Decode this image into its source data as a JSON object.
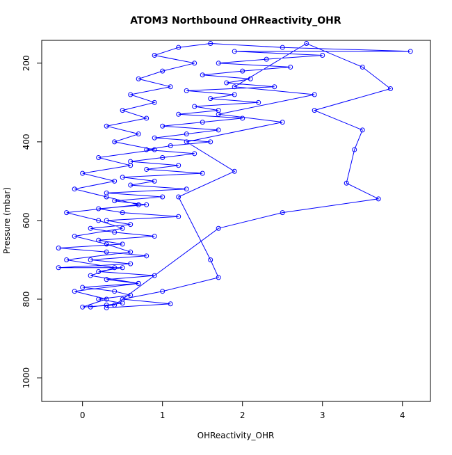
{
  "chart_data": {
    "type": "line",
    "title": "ATOM3 Northbound OHReactivity_OHR",
    "xlabel": "OHReactivity_OHR",
    "ylabel": "Pressure (mbar)",
    "xlim": [
      -0.51,
      4.35
    ],
    "xticks": [
      0,
      1,
      2,
      3,
      4
    ],
    "ylim": [
      1060,
      142
    ],
    "yticks": [
      200,
      400,
      600,
      800,
      1000
    ],
    "x": [
      0.1,
      0.3,
      0.5,
      0.2,
      0.6,
      0.4,
      0.0,
      0.7,
      0.3,
      0.9,
      0.2,
      0.5,
      -0.3,
      0.6,
      0.1,
      0.8,
      0.3,
      -0.3,
      0.5,
      0.2,
      0.9,
      0.4,
      0.1,
      0.6,
      0.3,
      1.2,
      0.5,
      0.2,
      0.8,
      0.4,
      1.0,
      0.3,
      1.3,
      0.6,
      0.9,
      0.5,
      1.5,
      0.8,
      1.2,
      0.6,
      1.0,
      1.4,
      0.8,
      1.1,
      1.6,
      0.9,
      1.3,
      1.7,
      1.0,
      1.5,
      2.0,
      1.2,
      1.7,
      1.4,
      2.2,
      1.6,
      1.9,
      1.3,
      2.4,
      1.8,
      2.1,
      1.5,
      2.0,
      2.6,
      1.7,
      2.3,
      3.0,
      1.9,
      4.1,
      2.5,
      1.6,
      1.2,
      0.9,
      1.4,
      1.0,
      0.7,
      1.1,
      0.6,
      0.9,
      0.5,
      0.8,
      0.3,
      0.7,
      0.4,
      0.9,
      0.2,
      0.6,
      0.0,
      0.4,
      -0.1,
      0.3,
      0.7,
      -0.2,
      0.2,
      0.5,
      -0.1,
      0.3,
      0.6,
      -0.2,
      0.4,
      0.1,
      0.7,
      -0.1,
      0.3,
      0.0,
      0.4,
      1.7,
      2.5,
      3.7,
      3.3,
      3.4,
      3.5,
      2.9,
      3.85,
      3.5,
      2.8,
      1.9,
      2.9,
      1.7,
      2.5,
      1.3,
      1.9,
      1.2,
      1.6,
      1.7,
      1.0,
      0.5,
      1.1,
      0.3
    ],
    "series": [
      {
        "color": "#0000ff",
        "values": [
          820,
          815,
          810,
          800,
          790,
          780,
          770,
          760,
          750,
          740,
          730,
          720,
          720,
          710,
          700,
          690,
          680,
          670,
          660,
          650,
          640,
          630,
          620,
          610,
          600,
          590,
          580,
          570,
          560,
          550,
          540,
          530,
          520,
          510,
          500,
          490,
          480,
          470,
          460,
          450,
          440,
          430,
          420,
          410,
          400,
          390,
          380,
          370,
          360,
          350,
          340,
          330,
          320,
          310,
          300,
          290,
          280,
          270,
          260,
          250,
          240,
          230,
          220,
          210,
          200,
          190,
          180,
          170,
          170,
          160,
          150,
          160,
          180,
          200,
          220,
          240,
          260,
          280,
          300,
          320,
          340,
          360,
          380,
          400,
          420,
          440,
          460,
          480,
          500,
          520,
          540,
          560,
          580,
          600,
          620,
          640,
          660,
          680,
          700,
          720,
          740,
          760,
          780,
          800,
          820,
          815,
          620,
          580,
          545,
          505,
          420,
          370,
          320,
          265,
          210,
          150,
          260,
          280,
          330,
          350,
          400,
          475,
          540,
          700,
          745,
          780,
          800,
          812,
          822
        ]
      }
    ]
  }
}
